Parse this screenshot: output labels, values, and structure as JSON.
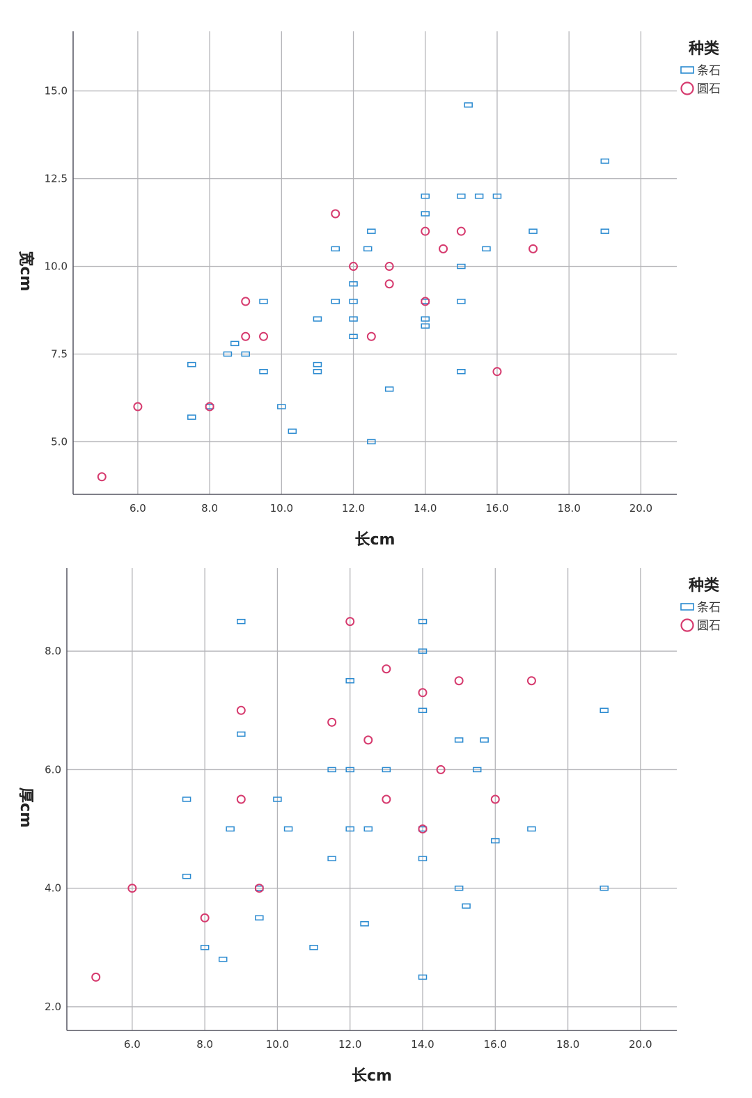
{
  "chart_data": [
    {
      "type": "scatter",
      "xlabel": "长cm",
      "ylabel": "宽cm",
      "xlim": [
        4.2,
        21.0
      ],
      "ylim": [
        3.5,
        16.7
      ],
      "xticks": [
        "6.0",
        "8.0",
        "10.0",
        "12.0",
        "14.0",
        "16.0",
        "18.0",
        "20.0"
      ],
      "yticks": [
        "5.0",
        "7.5",
        "10.0",
        "12.5",
        "15.0"
      ],
      "grid": true,
      "legend": {
        "title": "种类",
        "placement": "top-right"
      },
      "series": [
        {
          "name": "条石",
          "marker": "rect",
          "color": "#2a8ad0",
          "points": [
            [
              7.5,
              7.2
            ],
            [
              7.5,
              5.7
            ],
            [
              8.0,
              6.0
            ],
            [
              8.5,
              7.5
            ],
            [
              8.7,
              7.8
            ],
            [
              9.0,
              7.5
            ],
            [
              9.5,
              9.0
            ],
            [
              9.5,
              7.0
            ],
            [
              10.0,
              6.0
            ],
            [
              10.3,
              5.3
            ],
            [
              11.0,
              8.5
            ],
            [
              11.0,
              7.2
            ],
            [
              11.0,
              7.0
            ],
            [
              11.5,
              10.5
            ],
            [
              11.5,
              9.0
            ],
            [
              12.0,
              9.5
            ],
            [
              12.0,
              9.0
            ],
            [
              12.0,
              8.5
            ],
            [
              12.0,
              8.0
            ],
            [
              12.4,
              10.5
            ],
            [
              12.5,
              11.0
            ],
            [
              12.5,
              5.0
            ],
            [
              13.0,
              6.5
            ],
            [
              14.0,
              12.0
            ],
            [
              14.0,
              11.5
            ],
            [
              14.0,
              9.0
            ],
            [
              14.0,
              8.5
            ],
            [
              14.0,
              8.3
            ],
            [
              15.0,
              12.0
            ],
            [
              15.0,
              10.0
            ],
            [
              15.0,
              9.0
            ],
            [
              15.0,
              7.0
            ],
            [
              15.2,
              14.6
            ],
            [
              15.5,
              12.0
            ],
            [
              15.7,
              10.5
            ],
            [
              16.0,
              12.0
            ],
            [
              17.0,
              11.0
            ],
            [
              19.0,
              13.0
            ],
            [
              19.0,
              11.0
            ]
          ]
        },
        {
          "name": "圆石",
          "marker": "circle",
          "color": "#d63a6e",
          "points": [
            [
              5.0,
              4.0
            ],
            [
              6.0,
              6.0
            ],
            [
              8.0,
              6.0
            ],
            [
              9.0,
              9.0
            ],
            [
              9.0,
              8.0
            ],
            [
              9.5,
              8.0
            ],
            [
              11.5,
              11.5
            ],
            [
              12.0,
              10.0
            ],
            [
              12.5,
              8.0
            ],
            [
              13.0,
              10.0
            ],
            [
              13.0,
              9.5
            ],
            [
              14.0,
              11.0
            ],
            [
              14.0,
              9.0
            ],
            [
              14.5,
              10.5
            ],
            [
              15.0,
              11.0
            ],
            [
              16.0,
              7.0
            ],
            [
              17.0,
              10.5
            ]
          ]
        }
      ]
    },
    {
      "type": "scatter",
      "xlabel": "长cm",
      "ylabel": "厚cm",
      "xlim": [
        4.2,
        21.0
      ],
      "ylim": [
        1.6,
        9.4
      ],
      "xticks": [
        "6.0",
        "8.0",
        "10.0",
        "12.0",
        "14.0",
        "16.0",
        "18.0",
        "20.0"
      ],
      "yticks": [
        "2.0",
        "4.0",
        "6.0",
        "8.0"
      ],
      "grid": true,
      "legend": {
        "title": "种类",
        "placement": "top-right"
      },
      "series": [
        {
          "name": "条石",
          "marker": "rect",
          "color": "#2a8ad0",
          "points": [
            [
              7.5,
              5.5
            ],
            [
              7.5,
              4.2
            ],
            [
              8.0,
              3.0
            ],
            [
              8.5,
              2.8
            ],
            [
              8.7,
              5.0
            ],
            [
              9.0,
              8.5
            ],
            [
              9.0,
              6.6
            ],
            [
              9.5,
              4.0
            ],
            [
              9.5,
              3.5
            ],
            [
              10.0,
              5.5
            ],
            [
              10.3,
              5.0
            ],
            [
              11.0,
              3.0
            ],
            [
              11.5,
              6.0
            ],
            [
              11.5,
              4.5
            ],
            [
              12.0,
              7.5
            ],
            [
              12.0,
              6.0
            ],
            [
              12.0,
              5.0
            ],
            [
              12.4,
              3.4
            ],
            [
              12.5,
              5.0
            ],
            [
              13.0,
              6.0
            ],
            [
              14.0,
              8.5
            ],
            [
              14.0,
              8.0
            ],
            [
              14.0,
              7.0
            ],
            [
              14.0,
              5.0
            ],
            [
              14.0,
              4.5
            ],
            [
              14.0,
              2.5
            ],
            [
              15.0,
              6.5
            ],
            [
              15.0,
              4.0
            ],
            [
              15.2,
              3.7
            ],
            [
              15.5,
              6.0
            ],
            [
              15.7,
              6.5
            ],
            [
              16.0,
              4.8
            ],
            [
              17.0,
              5.0
            ],
            [
              19.0,
              7.0
            ],
            [
              19.0,
              4.0
            ]
          ]
        },
        {
          "name": "圆石",
          "marker": "circle",
          "color": "#d63a6e",
          "points": [
            [
              5.0,
              2.5
            ],
            [
              6.0,
              4.0
            ],
            [
              8.0,
              3.5
            ],
            [
              9.0,
              7.0
            ],
            [
              9.0,
              5.5
            ],
            [
              9.5,
              4.0
            ],
            [
              11.5,
              6.8
            ],
            [
              12.0,
              8.5
            ],
            [
              12.5,
              6.5
            ],
            [
              13.0,
              7.7
            ],
            [
              13.0,
              5.5
            ],
            [
              14.0,
              7.3
            ],
            [
              14.0,
              5.0
            ],
            [
              14.5,
              6.0
            ],
            [
              15.0,
              7.5
            ],
            [
              16.0,
              5.5
            ],
            [
              17.0,
              7.5
            ]
          ]
        }
      ]
    }
  ]
}
